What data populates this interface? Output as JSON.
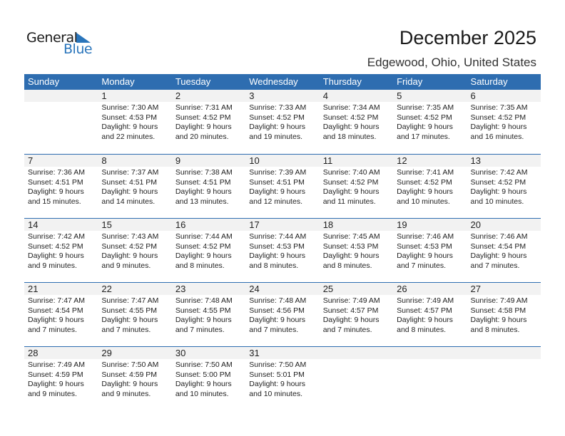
{
  "logo": {
    "general": "General",
    "blue": "Blue"
  },
  "title": "December 2025",
  "location": "Edgewood, Ohio, United States",
  "colors": {
    "accent": "#2e6db0",
    "band": "#f2f2f2"
  },
  "weekdays": [
    "Sunday",
    "Monday",
    "Tuesday",
    "Wednesday",
    "Thursday",
    "Friday",
    "Saturday"
  ],
  "weeks": [
    [
      null,
      {
        "day": "1",
        "sunrise": "Sunrise: 7:30 AM",
        "sunset": "Sunset: 4:53 PM",
        "daylight": "Daylight: 9 hours",
        "minutes": "and 22 minutes."
      },
      {
        "day": "2",
        "sunrise": "Sunrise: 7:31 AM",
        "sunset": "Sunset: 4:52 PM",
        "daylight": "Daylight: 9 hours",
        "minutes": "and 20 minutes."
      },
      {
        "day": "3",
        "sunrise": "Sunrise: 7:33 AM",
        "sunset": "Sunset: 4:52 PM",
        "daylight": "Daylight: 9 hours",
        "minutes": "and 19 minutes."
      },
      {
        "day": "4",
        "sunrise": "Sunrise: 7:34 AM",
        "sunset": "Sunset: 4:52 PM",
        "daylight": "Daylight: 9 hours",
        "minutes": "and 18 minutes."
      },
      {
        "day": "5",
        "sunrise": "Sunrise: 7:35 AM",
        "sunset": "Sunset: 4:52 PM",
        "daylight": "Daylight: 9 hours",
        "minutes": "and 17 minutes."
      },
      {
        "day": "6",
        "sunrise": "Sunrise: 7:35 AM",
        "sunset": "Sunset: 4:52 PM",
        "daylight": "Daylight: 9 hours",
        "minutes": "and 16 minutes."
      }
    ],
    [
      {
        "day": "7",
        "sunrise": "Sunrise: 7:36 AM",
        "sunset": "Sunset: 4:51 PM",
        "daylight": "Daylight: 9 hours",
        "minutes": "and 15 minutes."
      },
      {
        "day": "8",
        "sunrise": "Sunrise: 7:37 AM",
        "sunset": "Sunset: 4:51 PM",
        "daylight": "Daylight: 9 hours",
        "minutes": "and 14 minutes."
      },
      {
        "day": "9",
        "sunrise": "Sunrise: 7:38 AM",
        "sunset": "Sunset: 4:51 PM",
        "daylight": "Daylight: 9 hours",
        "minutes": "and 13 minutes."
      },
      {
        "day": "10",
        "sunrise": "Sunrise: 7:39 AM",
        "sunset": "Sunset: 4:51 PM",
        "daylight": "Daylight: 9 hours",
        "minutes": "and 12 minutes."
      },
      {
        "day": "11",
        "sunrise": "Sunrise: 7:40 AM",
        "sunset": "Sunset: 4:52 PM",
        "daylight": "Daylight: 9 hours",
        "minutes": "and 11 minutes."
      },
      {
        "day": "12",
        "sunrise": "Sunrise: 7:41 AM",
        "sunset": "Sunset: 4:52 PM",
        "daylight": "Daylight: 9 hours",
        "minutes": "and 10 minutes."
      },
      {
        "day": "13",
        "sunrise": "Sunrise: 7:42 AM",
        "sunset": "Sunset: 4:52 PM",
        "daylight": "Daylight: 9 hours",
        "minutes": "and 10 minutes."
      }
    ],
    [
      {
        "day": "14",
        "sunrise": "Sunrise: 7:42 AM",
        "sunset": "Sunset: 4:52 PM",
        "daylight": "Daylight: 9 hours",
        "minutes": "and 9 minutes."
      },
      {
        "day": "15",
        "sunrise": "Sunrise: 7:43 AM",
        "sunset": "Sunset: 4:52 PM",
        "daylight": "Daylight: 9 hours",
        "minutes": "and 9 minutes."
      },
      {
        "day": "16",
        "sunrise": "Sunrise: 7:44 AM",
        "sunset": "Sunset: 4:52 PM",
        "daylight": "Daylight: 9 hours",
        "minutes": "and 8 minutes."
      },
      {
        "day": "17",
        "sunrise": "Sunrise: 7:44 AM",
        "sunset": "Sunset: 4:53 PM",
        "daylight": "Daylight: 9 hours",
        "minutes": "and 8 minutes."
      },
      {
        "day": "18",
        "sunrise": "Sunrise: 7:45 AM",
        "sunset": "Sunset: 4:53 PM",
        "daylight": "Daylight: 9 hours",
        "minutes": "and 8 minutes."
      },
      {
        "day": "19",
        "sunrise": "Sunrise: 7:46 AM",
        "sunset": "Sunset: 4:53 PM",
        "daylight": "Daylight: 9 hours",
        "minutes": "and 7 minutes."
      },
      {
        "day": "20",
        "sunrise": "Sunrise: 7:46 AM",
        "sunset": "Sunset: 4:54 PM",
        "daylight": "Daylight: 9 hours",
        "minutes": "and 7 minutes."
      }
    ],
    [
      {
        "day": "21",
        "sunrise": "Sunrise: 7:47 AM",
        "sunset": "Sunset: 4:54 PM",
        "daylight": "Daylight: 9 hours",
        "minutes": "and 7 minutes."
      },
      {
        "day": "22",
        "sunrise": "Sunrise: 7:47 AM",
        "sunset": "Sunset: 4:55 PM",
        "daylight": "Daylight: 9 hours",
        "minutes": "and 7 minutes."
      },
      {
        "day": "23",
        "sunrise": "Sunrise: 7:48 AM",
        "sunset": "Sunset: 4:55 PM",
        "daylight": "Daylight: 9 hours",
        "minutes": "and 7 minutes."
      },
      {
        "day": "24",
        "sunrise": "Sunrise: 7:48 AM",
        "sunset": "Sunset: 4:56 PM",
        "daylight": "Daylight: 9 hours",
        "minutes": "and 7 minutes."
      },
      {
        "day": "25",
        "sunrise": "Sunrise: 7:49 AM",
        "sunset": "Sunset: 4:57 PM",
        "daylight": "Daylight: 9 hours",
        "minutes": "and 7 minutes."
      },
      {
        "day": "26",
        "sunrise": "Sunrise: 7:49 AM",
        "sunset": "Sunset: 4:57 PM",
        "daylight": "Daylight: 9 hours",
        "minutes": "and 8 minutes."
      },
      {
        "day": "27",
        "sunrise": "Sunrise: 7:49 AM",
        "sunset": "Sunset: 4:58 PM",
        "daylight": "Daylight: 9 hours",
        "minutes": "and 8 minutes."
      }
    ],
    [
      {
        "day": "28",
        "sunrise": "Sunrise: 7:49 AM",
        "sunset": "Sunset: 4:59 PM",
        "daylight": "Daylight: 9 hours",
        "minutes": "and 9 minutes."
      },
      {
        "day": "29",
        "sunrise": "Sunrise: 7:50 AM",
        "sunset": "Sunset: 4:59 PM",
        "daylight": "Daylight: 9 hours",
        "minutes": "and 9 minutes."
      },
      {
        "day": "30",
        "sunrise": "Sunrise: 7:50 AM",
        "sunset": "Sunset: 5:00 PM",
        "daylight": "Daylight: 9 hours",
        "minutes": "and 10 minutes."
      },
      {
        "day": "31",
        "sunrise": "Sunrise: 7:50 AM",
        "sunset": "Sunset: 5:01 PM",
        "daylight": "Daylight: 9 hours",
        "minutes": "and 10 minutes."
      },
      null,
      null,
      null
    ]
  ]
}
